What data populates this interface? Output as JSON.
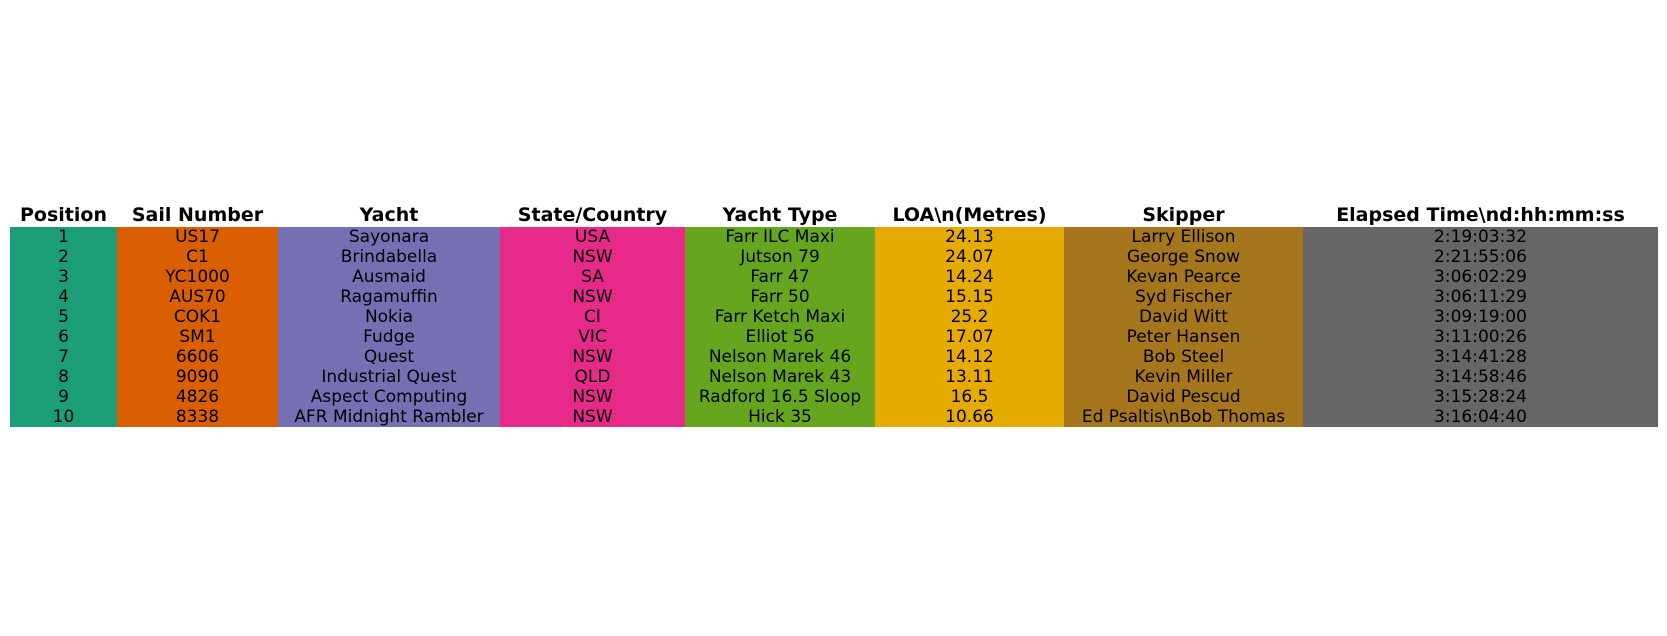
{
  "chart_data": {
    "type": "table",
    "columns": [
      {
        "key": "position",
        "header": "Position",
        "color": "#1b9e77"
      },
      {
        "key": "sail_number",
        "header": "Sail Number",
        "color": "#d95f02"
      },
      {
        "key": "yacht",
        "header": "Yacht",
        "color": "#7570b3"
      },
      {
        "key": "state_country",
        "header": "State/Country",
        "color": "#e7298a"
      },
      {
        "key": "yacht_type",
        "header": "Yacht Type",
        "color": "#66a61e"
      },
      {
        "key": "loa",
        "header": "LOA\\n(Metres)",
        "color": "#e6ab02"
      },
      {
        "key": "skipper",
        "header": "Skipper",
        "color": "#a6761d"
      },
      {
        "key": "elapsed",
        "header": "Elapsed Time\\nd:hh:mm:ss",
        "color": "#666666"
      }
    ],
    "rows": [
      [
        "1",
        "US17",
        "Sayonara",
        "USA",
        "Farr ILC Maxi",
        "24.13",
        "Larry Ellison",
        "2:19:03:32"
      ],
      [
        "2",
        "C1",
        "Brindabella",
        "NSW",
        "Jutson 79",
        "24.07",
        "George Snow",
        "2:21:55:06"
      ],
      [
        "3",
        "YC1000",
        "Ausmaid",
        "SA",
        "Farr 47",
        "14.24",
        "Kevan Pearce",
        "3:06:02:29"
      ],
      [
        "4",
        "AUS70",
        "Ragamuffin",
        "NSW",
        "Farr 50",
        "15.15",
        "Syd Fischer",
        "3:06:11:29"
      ],
      [
        "5",
        "COK1",
        "Nokia",
        "CI",
        "Farr Ketch Maxi",
        "25.2",
        "David Witt",
        "3:09:19:00"
      ],
      [
        "6",
        "SM1",
        "Fudge",
        "VIC",
        "Elliot 56",
        "17.07",
        "Peter Hansen",
        "3:11:00:26"
      ],
      [
        "7",
        "6606",
        "Quest",
        "NSW",
        "Nelson Marek 46",
        "14.12",
        "Bob Steel",
        "3:14:41:28"
      ],
      [
        "8",
        "9090",
        "Industrial Quest",
        "QLD",
        "Nelson Marek 43",
        "13.11",
        "Kevin Miller",
        "3:14:58:46"
      ],
      [
        "9",
        "4826",
        "Aspect Computing",
        "NSW",
        "Radford 16.5 Sloop",
        "16.5",
        "David Pescud",
        "3:15:28:24"
      ],
      [
        "10",
        "8338",
        "AFR Midnight Rambler",
        "NSW",
        "Hick 35",
        "10.66",
        "Ed Psaltis\\nBob Thomas",
        "3:16:04:40"
      ]
    ]
  }
}
